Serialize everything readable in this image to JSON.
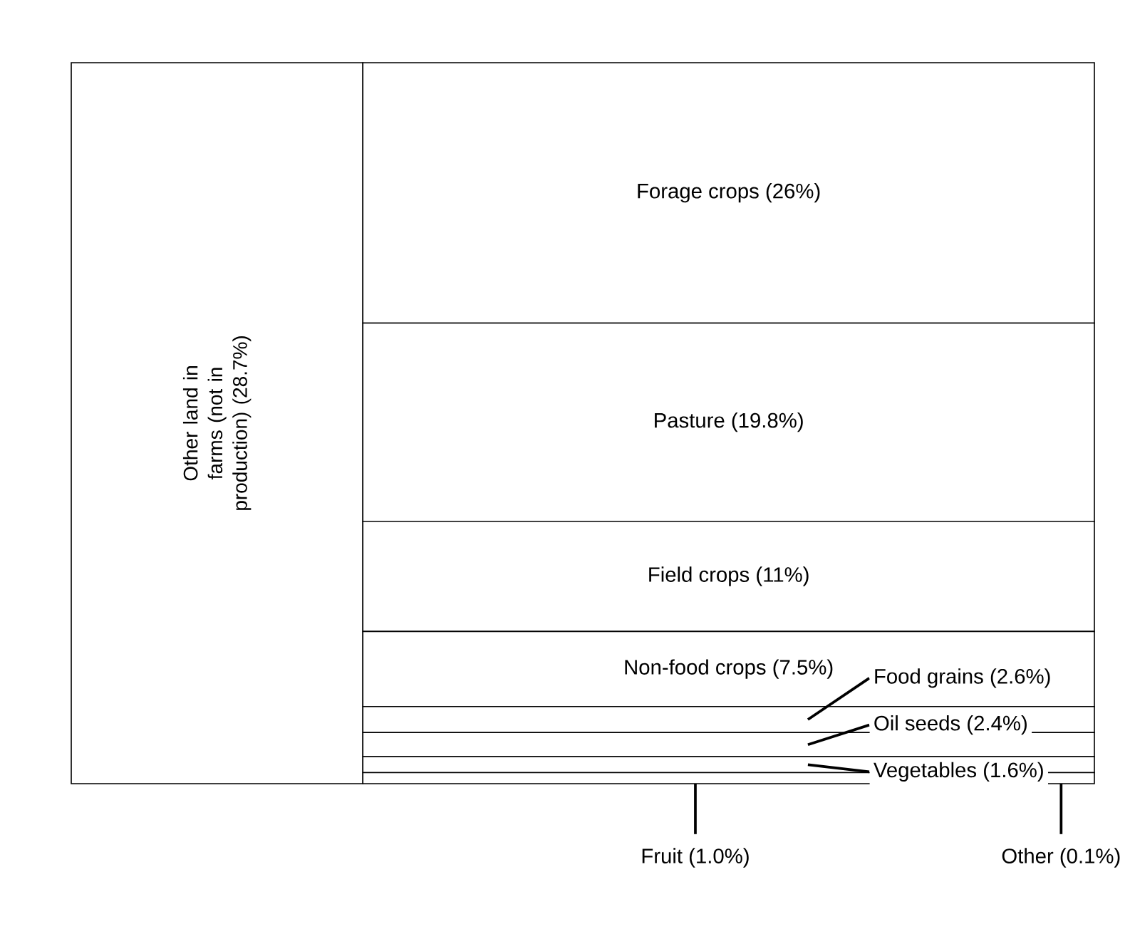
{
  "chart_data": {
    "type": "other",
    "categories": [
      "Other land in farms (not in production)",
      "Forage crops",
      "Pasture",
      "Field crops",
      "Non-food crops",
      "Food grains",
      "Oil seeds",
      "Vegetables",
      "Fruit",
      "Other"
    ],
    "values": [
      28.7,
      26,
      19.8,
      11,
      7.5,
      2.6,
      2.4,
      1.6,
      1.0,
      0.1
    ],
    "value_labels": [
      "(28.7%)",
      "(26%)",
      "(19.8%)",
      "(11%)",
      "(7.5%)",
      "(2.6%)",
      "(2.4%)",
      "(1.6%)",
      "(1.0%)",
      "(0.1%)"
    ]
  }
}
